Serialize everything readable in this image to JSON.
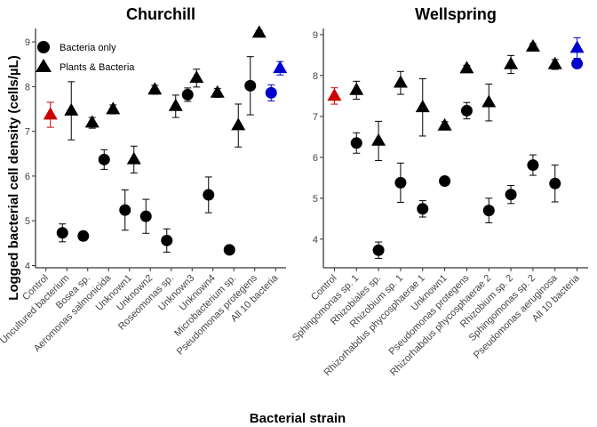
{
  "xlabel": "Bacterial strain",
  "ylabel": "Logged bacterial cell density (cells/µL)",
  "legend": {
    "placement": "top-left",
    "entries": [
      {
        "name": "Bacteria only",
        "shape": "circle"
      },
      {
        "name": "Plants & Bacteria",
        "shape": "triangle"
      }
    ]
  },
  "colors": {
    "default": "#000000",
    "control": "#cc0000",
    "all10": "#0000cc"
  },
  "chart_data": [
    {
      "type": "scatter",
      "title": "Churchill",
      "ylim": [
        3.95,
        9.3
      ],
      "yticks": [
        4,
        5,
        6,
        7,
        8,
        9
      ],
      "categories": [
        "Control",
        "Uncultured bacterium",
        "Bosea sp.",
        "Aeromonas salmonicida",
        "Unknown1",
        "Unknown2",
        "Roseomonas sp.",
        "Unknown3",
        "Unknown4",
        "Microbacterium sp.",
        "Pseudomonas protegens",
        "All 10 bacteria"
      ],
      "series": [
        {
          "name": "Bacteria only",
          "shape": "circle",
          "color_by_category": {
            "All 10 bacteria": "#0000cc"
          },
          "points": [
            {
              "category": "Uncultured bacterium",
              "y": 4.73,
              "err": 0.2
            },
            {
              "category": "Bosea sp.",
              "y": 4.66,
              "err": 0.1
            },
            {
              "category": "Aeromonas salmonicida",
              "y": 6.37,
              "err": 0.22
            },
            {
              "category": "Unknown1",
              "y": 5.24,
              "err": 0.45
            },
            {
              "category": "Unknown2",
              "y": 5.1,
              "err": 0.38
            },
            {
              "category": "Roseomonas sp.",
              "y": 4.56,
              "err": 0.26
            },
            {
              "category": "Unknown3",
              "y": 7.82,
              "err": 0.15
            },
            {
              "category": "Unknown4",
              "y": 5.58,
              "err": 0.4
            },
            {
              "category": "Microbacterium sp.",
              "y": 4.35,
              "err": 0.05
            },
            {
              "category": "Pseudomonas protegens",
              "y": 8.02,
              "err": 0.65
            },
            {
              "category": "All 10 bacteria",
              "y": 7.86,
              "err": 0.18
            }
          ]
        },
        {
          "name": "Plants & Bacteria",
          "shape": "triangle",
          "color_by_category": {
            "Control": "#cc0000",
            "All 10 bacteria": "#0000cc"
          },
          "points": [
            {
              "category": "Control",
              "y": 7.37,
              "err": 0.28
            },
            {
              "category": "Uncultured bacterium",
              "y": 7.46,
              "err": 0.65
            },
            {
              "category": "Bosea sp.",
              "y": 7.19,
              "err": 0.12
            },
            {
              "category": "Aeromonas salmonicida",
              "y": 7.49,
              "err": 0.1
            },
            {
              "category": "Unknown1",
              "y": 6.37,
              "err": 0.3
            },
            {
              "category": "Unknown2",
              "y": 7.93,
              "err": 0.1
            },
            {
              "category": "Roseomonas sp.",
              "y": 7.56,
              "err": 0.25
            },
            {
              "category": "Unknown3",
              "y": 8.19,
              "err": 0.2
            },
            {
              "category": "Unknown4",
              "y": 7.86,
              "err": 0.1
            },
            {
              "category": "Microbacterium sp.",
              "y": 7.13,
              "err": 0.48
            },
            {
              "category": "Pseudomonas protegens",
              "y": 9.2,
              "err": 0.05
            },
            {
              "category": "All 10 bacteria",
              "y": 8.41,
              "err": 0.15
            }
          ]
        }
      ]
    },
    {
      "type": "scatter",
      "title": "Wellspring",
      "ylim": [
        3.3,
        9.15
      ],
      "yticks": [
        4,
        5,
        6,
        7,
        8,
        9
      ],
      "categories": [
        "Control",
        "Sphingomonas sp. 1",
        "Rhizobiales sp.",
        "Rhizobium sp. 1",
        "Rhizorhabdus phycosphaerae 1",
        "Unknown1",
        "Pseudomonas protegens",
        "Rhizorhabdus phycosphaerae 2",
        "Rhizobium sp. 2",
        "Sphingomonas sp. 2",
        "Pseudomonas aeruginosa",
        "All 10 bacteria"
      ],
      "series": [
        {
          "name": "Bacteria only",
          "shape": "circle",
          "color_by_category": {
            "All 10 bacteria": "#0000cc"
          },
          "points": [
            {
              "category": "Sphingomonas sp. 1",
              "y": 6.35,
              "err": 0.25
            },
            {
              "category": "Rhizobiales sp.",
              "y": 3.73,
              "err": 0.2
            },
            {
              "category": "Rhizobium sp. 1",
              "y": 5.38,
              "err": 0.48
            },
            {
              "category": "Rhizorhabdus phycosphaerae 1",
              "y": 4.74,
              "err": 0.2
            },
            {
              "category": "Unknown1",
              "y": 5.42,
              "err": 0.05
            },
            {
              "category": "Pseudomonas protegens",
              "y": 7.14,
              "err": 0.2
            },
            {
              "category": "Rhizorhabdus phycosphaerae 2",
              "y": 4.7,
              "err": 0.3
            },
            {
              "category": "Rhizobium sp. 2",
              "y": 5.09,
              "err": 0.22
            },
            {
              "category": "Sphingomonas sp. 2",
              "y": 5.81,
              "err": 0.25
            },
            {
              "category": "Pseudomonas aeruginosa",
              "y": 5.36,
              "err": 0.45
            },
            {
              "category": "All 10 bacteria",
              "y": 8.29,
              "err": 0.1
            }
          ]
        },
        {
          "name": "Plants & Bacteria",
          "shape": "triangle",
          "color_by_category": {
            "Control": "#cc0000",
            "All 10 bacteria": "#0000cc"
          },
          "points": [
            {
              "category": "Control",
              "y": 7.5,
              "err": 0.2
            },
            {
              "category": "Sphingomonas sp. 1",
              "y": 7.64,
              "err": 0.22
            },
            {
              "category": "Rhizobiales sp.",
              "y": 6.4,
              "err": 0.48
            },
            {
              "category": "Rhizobium sp. 1",
              "y": 7.82,
              "err": 0.28
            },
            {
              "category": "Rhizorhabdus phycosphaerae 1",
              "y": 7.22,
              "err": 0.7
            },
            {
              "category": "Unknown1",
              "y": 6.77,
              "err": 0.1
            },
            {
              "category": "Pseudomonas protegens",
              "y": 8.17,
              "err": 0.08
            },
            {
              "category": "Rhizorhabdus phycosphaerae 2",
              "y": 7.34,
              "err": 0.45
            },
            {
              "category": "Rhizobium sp. 2",
              "y": 8.27,
              "err": 0.22
            },
            {
              "category": "Sphingomonas sp. 2",
              "y": 8.7,
              "err": 0.08
            },
            {
              "category": "Pseudomonas aeruginosa",
              "y": 8.27,
              "err": 0.12
            },
            {
              "category": "All 10 bacteria",
              "y": 8.67,
              "err": 0.25
            }
          ]
        }
      ]
    }
  ]
}
